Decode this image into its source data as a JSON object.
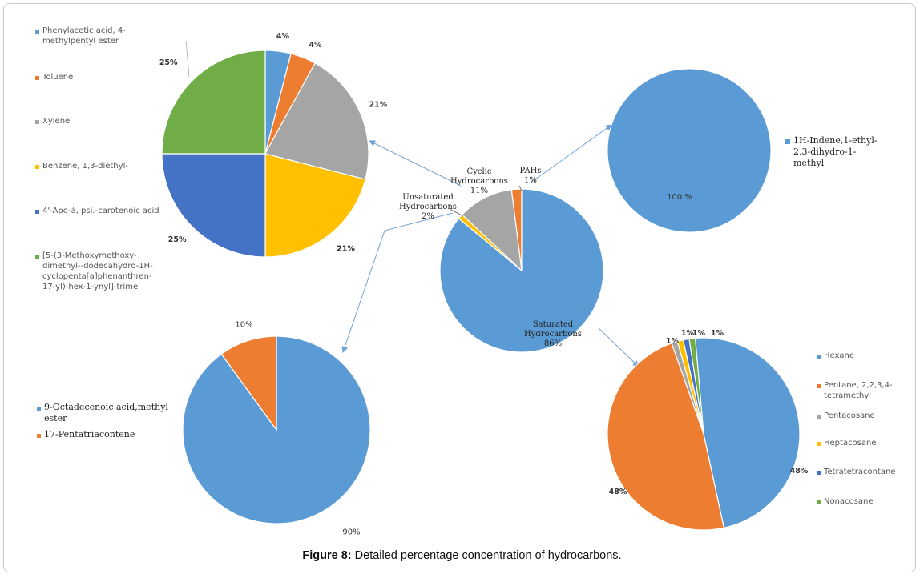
{
  "caption": {
    "label": "Figure 8:",
    "text": " Detailed percentage concentration of hydrocarbons."
  },
  "colors": {
    "blue": "#5b9bd5",
    "orange": "#ed7d31",
    "gray": "#a5a5a5",
    "yellow": "#ffc000",
    "darkblue": "#4472c4",
    "green": "#70ad47",
    "arrow": "#6fa0d8"
  },
  "chart_data": [
    {
      "id": "overview",
      "type": "pie",
      "series": [
        {
          "name": "Saturated Hydrocarbons",
          "value": 86,
          "label": "86%",
          "color": "#5b9bd5"
        },
        {
          "name": "Unsaturated Hydrocarbons",
          "value": 2,
          "label": "2%",
          "color": "#ed7d31"
        },
        {
          "name": "Cyclic Hydrocarbons",
          "value": 11,
          "label": "11%",
          "color": "#a5a5a5"
        },
        {
          "name": "PAHs",
          "value": 1,
          "label": "1%",
          "color": "#ffc000"
        }
      ]
    },
    {
      "id": "cyclic",
      "type": "pie",
      "series": [
        {
          "name": "Phenylacetic acid, 4-methylpentyl ester",
          "value": 4,
          "label": "4%",
          "color": "#5b9bd5"
        },
        {
          "name": "Toluene",
          "value": 4,
          "label": "4%",
          "color": "#ed7d31"
        },
        {
          "name": "Xylene",
          "value": 21,
          "label": "21%",
          "color": "#a5a5a5"
        },
        {
          "name": "Benzene, 1,3-diethyl-",
          "value": 21,
          "label": "21%",
          "color": "#ffc000"
        },
        {
          "name": "4'-Apo-á, psi.-carotenoic acid",
          "value": 25,
          "label": "25%",
          "color": "#4472c4"
        },
        {
          "name": "[5-(3-Methoxymethoxy-dimethyl-dodecahydro-1H-cyclopenta[a]phenanthren-17-yl)-hex-1-ynyl]-trime",
          "value": 25,
          "label": "25%",
          "color": "#70ad47"
        }
      ]
    },
    {
      "id": "pahs",
      "type": "pie",
      "series": [
        {
          "name": "1H-Indene,1-ethyl-2,3-dihydro-1-methyl",
          "value": 100,
          "label": "100 %",
          "color": "#5b9bd5"
        }
      ]
    },
    {
      "id": "unsaturated",
      "type": "pie",
      "series": [
        {
          "name": "9-Octadecenoic acid,methyl ester",
          "value": 90,
          "label": "90%",
          "color": "#5b9bd5"
        },
        {
          "name": "17-Pentatriacontene",
          "value": 10,
          "label": "10%",
          "color": "#ed7d31"
        }
      ]
    },
    {
      "id": "saturated",
      "type": "pie",
      "series": [
        {
          "name": "Hexane",
          "value": 48,
          "label": "48%",
          "color": "#5b9bd5"
        },
        {
          "name": "Pentane, 2,2,3,4-tetramethyl",
          "value": 48,
          "label": "48%",
          "color": "#ed7d31"
        },
        {
          "name": "Pentacosane",
          "value": 1,
          "label": "1%",
          "color": "#a5a5a5"
        },
        {
          "name": "Heptacosane",
          "value": 1,
          "label": "1%",
          "color": "#ffc000"
        },
        {
          "name": "Tetratetracontane",
          "value": 1,
          "label": "1%",
          "color": "#4472c4"
        },
        {
          "name": "Nonacosane",
          "value": 1,
          "label": "1%",
          "color": "#70ad47"
        }
      ]
    }
  ],
  "legends": {
    "cyclic": [
      [
        "Phenylacetic acid, 4-",
        "methylpentyl ester"
      ],
      [
        "Toluene"
      ],
      [
        "Xylene"
      ],
      [
        "Benzene, 1,3-diethyl-"
      ],
      [
        "4'-Apo-á, psi.-carotenoic acid"
      ],
      [
        "[5-(3-Methoxymethoxy-",
        "dimethyl--dodecahydro-1H-",
        "cyclopenta[a]phenanthren-",
        "17-yl)-hex-1-ynyl]-trime"
      ]
    ],
    "pahs": [
      [
        "1H-Indene,1-ethyl-",
        "2,3-dihydro-1-",
        "methyl"
      ]
    ],
    "unsaturated": [
      [
        "9-Octadecenoic acid,methyl",
        "ester"
      ],
      [
        "17-Pentatriacontene"
      ]
    ],
    "saturated": [
      [
        "Hexane"
      ],
      [
        "Pentane, 2,2,3,4-",
        "tetramethyl"
      ],
      [
        "Pentacosane"
      ],
      [
        "Heptacosane"
      ],
      [
        "Tetratetracontane"
      ],
      [
        "Nonacosane"
      ]
    ]
  },
  "overview_labels": {
    "cyclic": [
      "Cyclic",
      "Hydrocarbons",
      "11%"
    ],
    "pahs": [
      "PAHs",
      "1%"
    ],
    "unsaturated": [
      "Unsaturated",
      "Hydrocarbons",
      "2%"
    ],
    "saturated": [
      "Saturated",
      "Hydrocarbons",
      "86%"
    ]
  },
  "saturated_small_labels": [
    "1%",
    "1%",
    "1%",
    "1%"
  ]
}
